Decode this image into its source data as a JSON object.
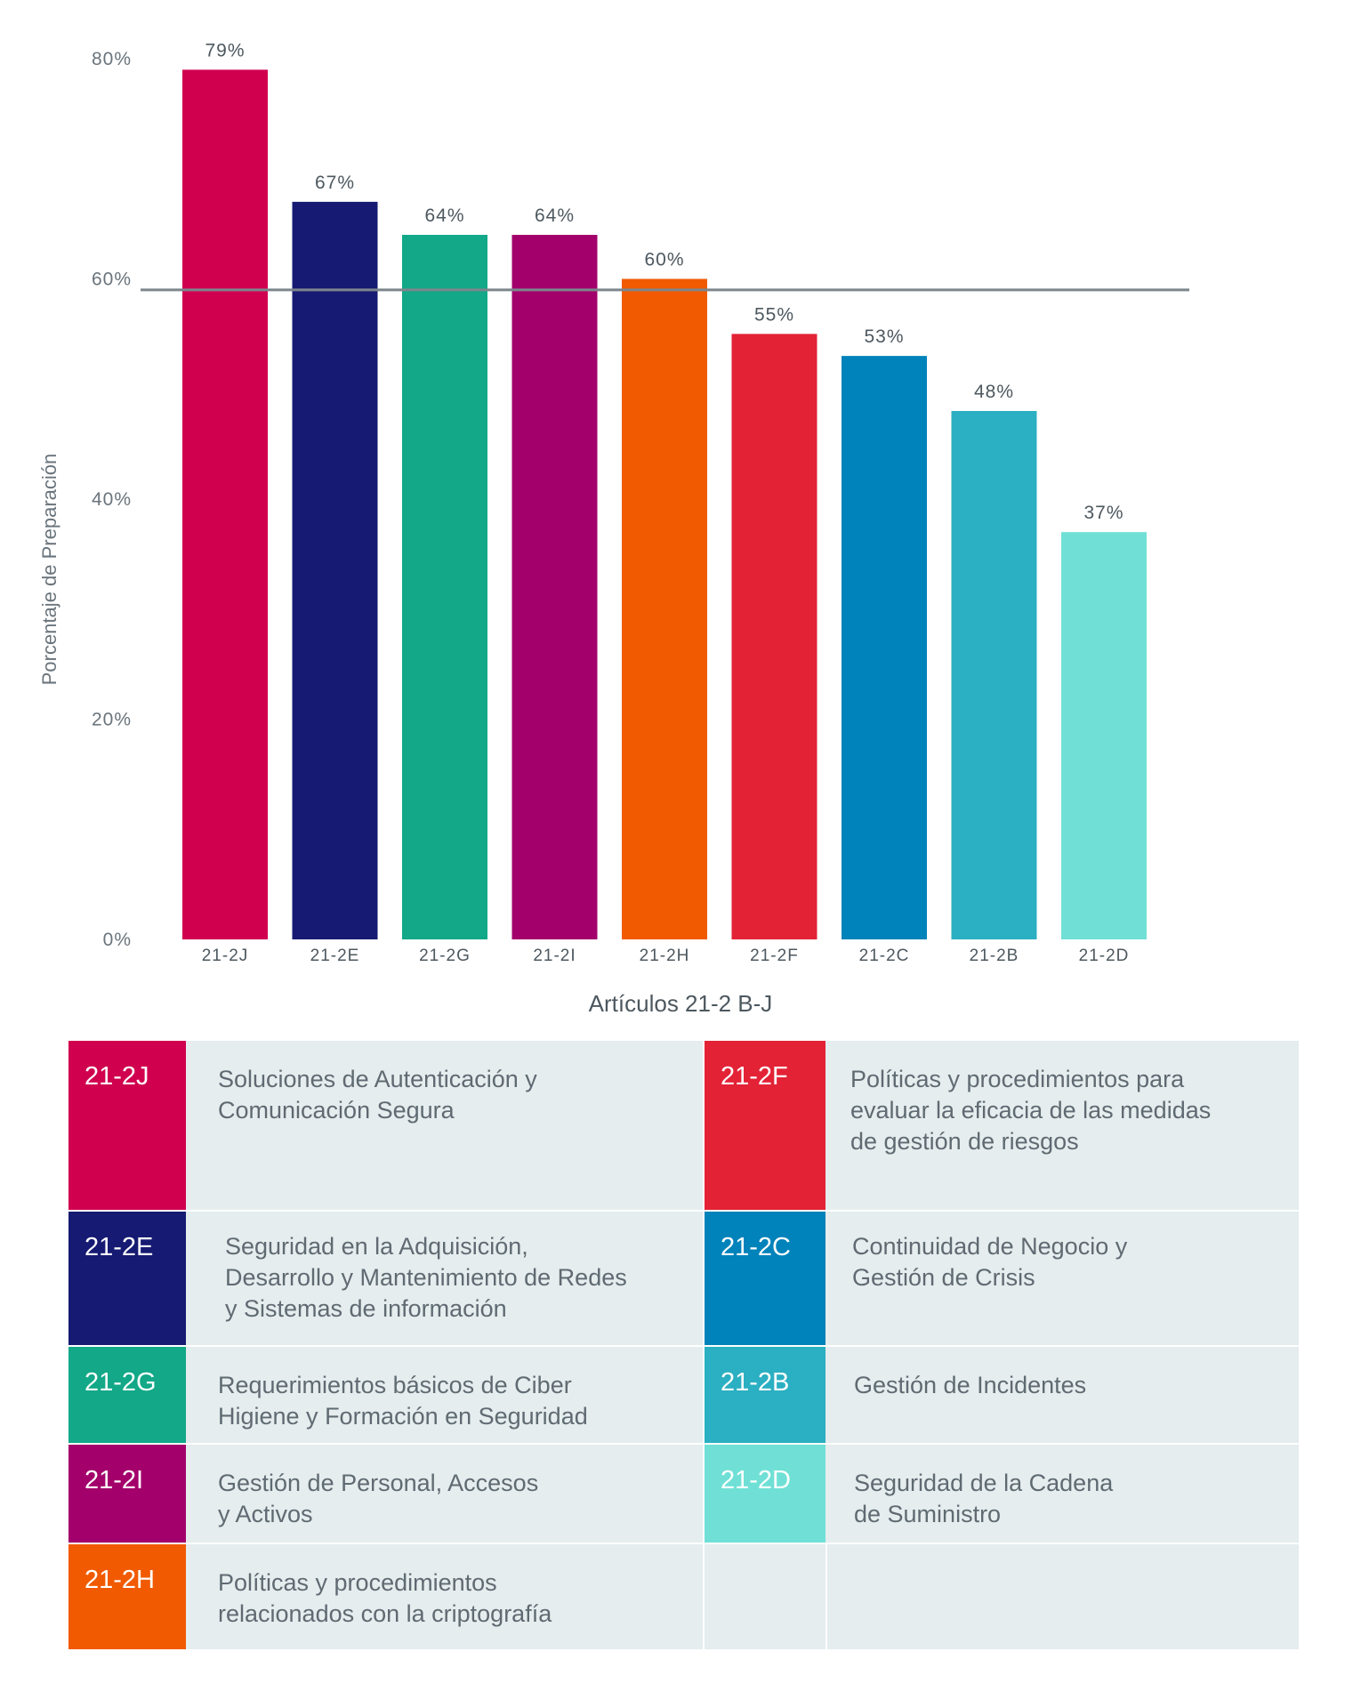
{
  "chart_data": {
    "type": "bar",
    "categories": [
      "21-2J",
      "21-2E",
      "21-2G",
      "21-2I",
      "21-2H",
      "21-2F",
      "21-2C",
      "21-2B",
      "21-2D"
    ],
    "values": [
      79,
      67,
      64,
      64,
      60,
      55,
      53,
      48,
      37
    ],
    "data_labels": [
      "79%",
      "67%",
      "64%",
      "64%",
      "60%",
      "55%",
      "53%",
      "48%",
      "37%"
    ],
    "colors": [
      "#d0004f",
      "#161a72",
      "#12a888",
      "#a3006b",
      "#f15a00",
      "#e32236",
      "#0082ba",
      "#2bafc2",
      "#70e0d6"
    ],
    "yticks": [
      "0%",
      "20%",
      "40%",
      "60%",
      "80%"
    ],
    "ytick_values": [
      0,
      20,
      40,
      60,
      80
    ],
    "ylim": [
      0,
      80
    ],
    "reference_line": 59,
    "reference_line_color": "#7c868c",
    "xlabel": "Artículos 21-2 B-J",
    "ylabel": "Porcentaje de Preparación",
    "grid": false
  },
  "legend": {
    "background": "#e5edee",
    "items": [
      {
        "code": "21-2J",
        "color": "#d0004f",
        "text": "Soluciones de Autenticación y\nComunicación Segura"
      },
      {
        "code": "21-2E",
        "color": "#161a72",
        "text": "Seguridad en la Adquisición,\nDesarrollo y Mantenimiento de Redes\ny Sistemas de información"
      },
      {
        "code": "21-2G",
        "color": "#12a888",
        "text": "Requerimientos básicos de Ciber\nHigiene y Formación en Seguridad"
      },
      {
        "code": "21-2I",
        "color": "#a3006b",
        "text": "Gestión de Personal, Accesos\ny Activos"
      },
      {
        "code": "21-2H",
        "color": "#f15a00",
        "text": "Políticas y procedimientos\nrelacionados con la criptografía"
      },
      {
        "code": "21-2F",
        "color": "#e32236",
        "text": "Políticas y procedimientos para\nevaluar la eficacia de las medidas\nde gestión de riesgos"
      },
      {
        "code": "21-2C",
        "color": "#0082ba",
        "text": "Continuidad de Negocio y\nGestión de Crisis"
      },
      {
        "code": "21-2B",
        "color": "#2bafc2",
        "text": "Gestión de Incidentes"
      },
      {
        "code": "21-2D",
        "color": "#70e0d6",
        "text": "Seguridad de la Cadena\nde Suministro"
      }
    ]
  }
}
